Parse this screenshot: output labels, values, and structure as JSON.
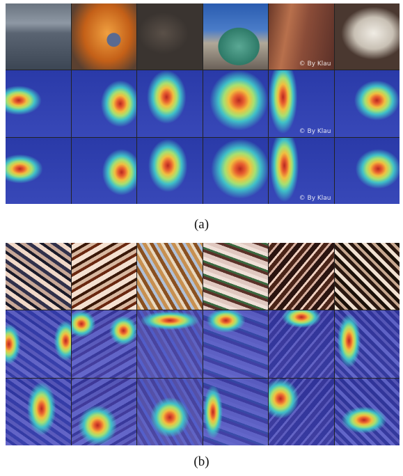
{
  "figure": {
    "panels": [
      {
        "caption": "(a)",
        "watermarks": [
          "© By Klau",
          "© By Klau",
          "© By Klau"
        ]
      },
      {
        "caption": "(b)"
      }
    ]
  }
}
